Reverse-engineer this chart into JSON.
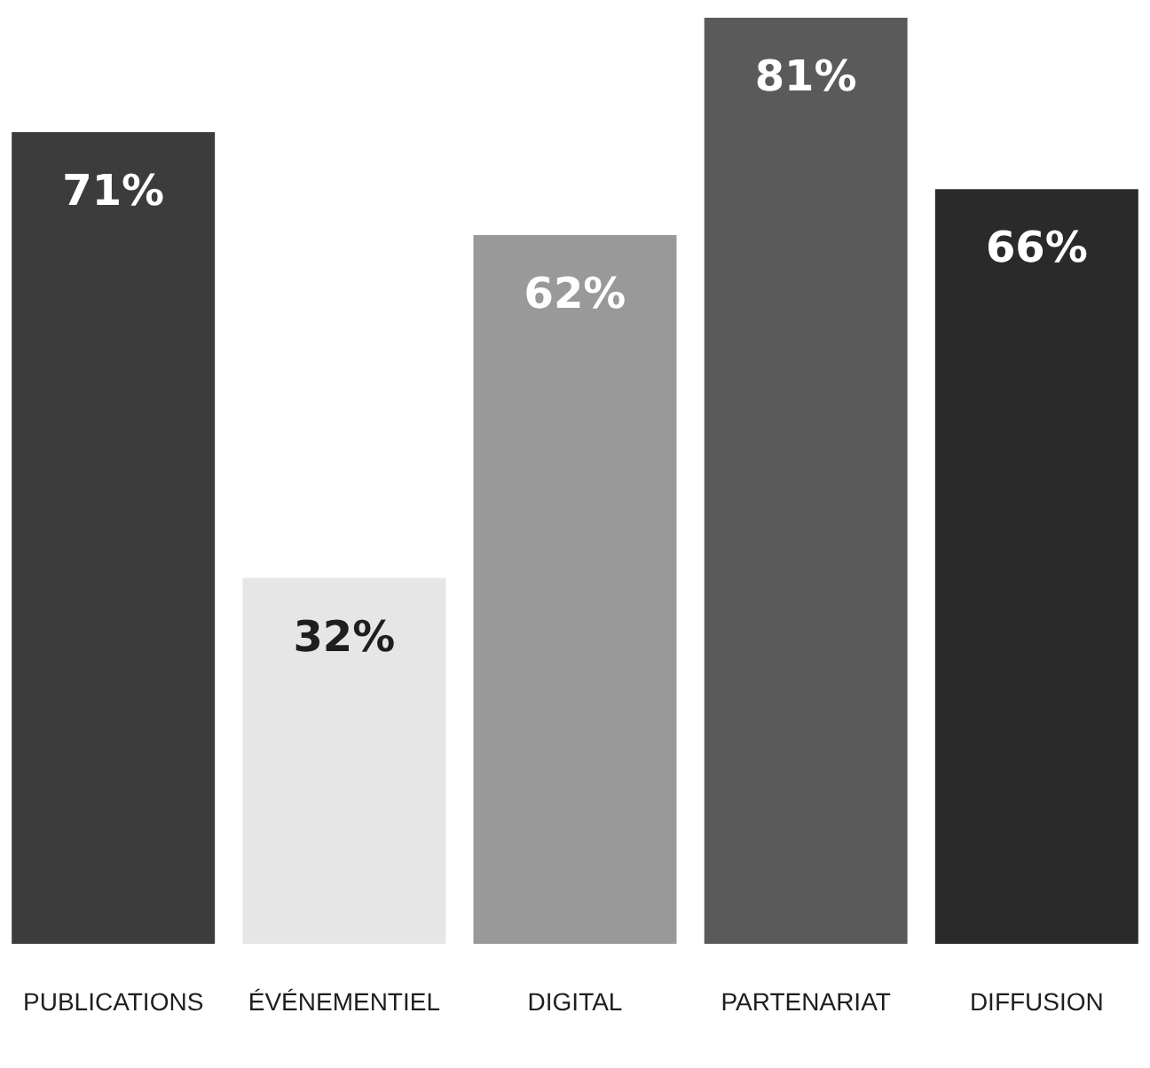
{
  "chart_data": {
    "type": "bar",
    "categories": [
      "PUBLICATIONS",
      "ÉVÉNEMENTIEL",
      "DIGITAL",
      "PARTENARIAT",
      "DIFFUSION"
    ],
    "values": [
      71,
      32,
      62,
      81,
      66
    ],
    "value_labels": [
      "71%",
      "32%",
      "62%",
      "81%",
      "66%"
    ],
    "colors": [
      "#3c3c3c",
      "#e6e6e6",
      "#999999",
      "#5a5a5a",
      "#2a2a2a"
    ]
  }
}
